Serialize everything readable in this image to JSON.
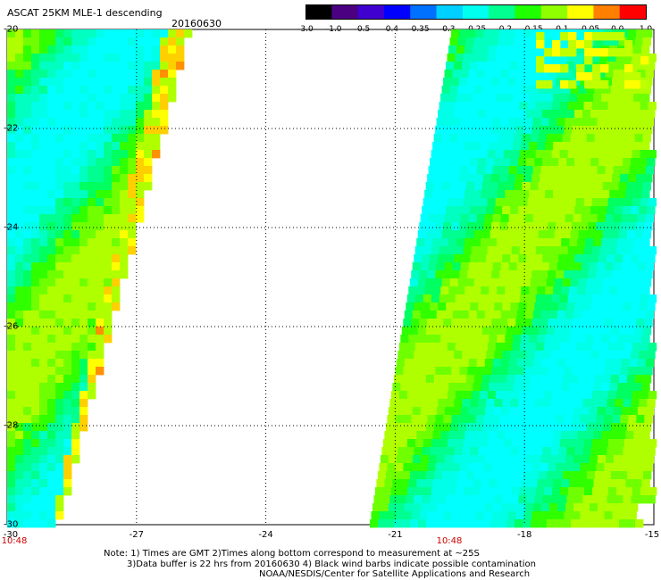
{
  "header": {
    "title": "ASCAT 25KM MLE-1 descending",
    "date": "20160630"
  },
  "colorbar": {
    "labels": [
      "-3.0",
      "-1.0",
      "-0.5",
      "-0.4",
      "-0.35",
      "-0.3",
      "-0.25",
      "-0.2",
      "-0.15",
      "-0.1",
      "-0.05",
      "0.0",
      "1.0"
    ],
    "colors": [
      "#000000",
      "#4b0082",
      "#3f00d0",
      "#0000ff",
      "#0070ff",
      "#00d0ff",
      "#00ffee",
      "#00ff90",
      "#20ff00",
      "#90ff00",
      "#ffff00",
      "#ff8000",
      "#ff0000"
    ]
  },
  "map": {
    "lat_labels": [
      "-20",
      "-22",
      "-24",
      "-26",
      "-28",
      "-30"
    ],
    "lon_labels": [
      "-30",
      "-27",
      "-24",
      "-21",
      "-18",
      "-15"
    ],
    "times": [
      "10:48",
      "10:48"
    ]
  },
  "notes": {
    "line1": "Note: 1) Times are GMT 2)Times along bottom correspond to measurement at ~25S",
    "line2": "3)Data buffer is 22 hrs from 20160630 4) Black wind barbs indicate possible contamination",
    "line3": "NOAA/NESDIS/Center for Satellite Applications and Research"
  }
}
